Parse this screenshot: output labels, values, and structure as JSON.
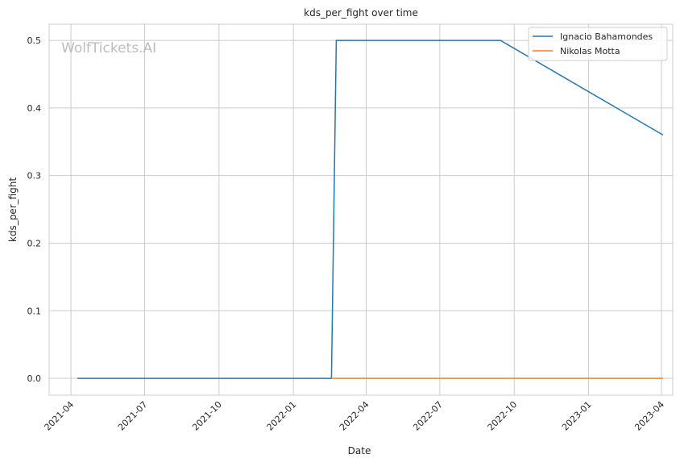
{
  "watermark": "WolfTickets.AI",
  "chart_data": {
    "type": "line",
    "title": "kds_per_fight over time",
    "xlabel": "Date",
    "ylabel": "kds_per_fight",
    "xlim": [
      "2021-03-05",
      "2023-04-15"
    ],
    "ylim": [
      -0.025,
      0.524
    ],
    "x_ticks": [
      "2021-04",
      "2021-07",
      "2021-10",
      "2022-01",
      "2022-04",
      "2022-07",
      "2022-10",
      "2023-01",
      "2023-04"
    ],
    "y_ticks": [
      "0.0",
      "0.1",
      "0.2",
      "0.3",
      "0.4",
      "0.5"
    ],
    "grid": true,
    "legend_position": "top-right",
    "series": [
      {
        "name": "Ignacio Bahamondes",
        "color": "#1f77b4",
        "x": [
          "2021-04-09",
          "2022-02-17",
          "2022-02-23",
          "2022-09-14",
          "2023-04-03"
        ],
        "y": [
          0.0,
          0.0,
          0.5,
          0.5,
          0.36
        ]
      },
      {
        "name": "Nikolas Motta",
        "color": "#ff7f0e",
        "x": [
          "2022-02-17",
          "2023-04-03"
        ],
        "y": [
          0.0,
          0.0
        ]
      }
    ]
  }
}
